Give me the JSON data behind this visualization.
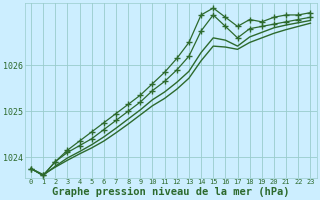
{
  "background_color": "#cceeff",
  "plot_bg_color": "#cceeff",
  "grid_color": "#99cccc",
  "line_color": "#2d6a2d",
  "xlabel": "Graphe pression niveau de la mer (hPa)",
  "xlabel_fontsize": 7.5,
  "ylim": [
    1023.55,
    1027.35
  ],
  "xlim": [
    -0.5,
    23.5
  ],
  "yticks": [
    1024,
    1025,
    1026
  ],
  "xticks": [
    0,
    1,
    2,
    3,
    4,
    5,
    6,
    7,
    8,
    9,
    10,
    11,
    12,
    13,
    14,
    15,
    16,
    17,
    18,
    19,
    20,
    21,
    22,
    23
  ],
  "series": [
    {
      "y": [
        1023.75,
        1023.6,
        1023.9,
        1024.15,
        1024.35,
        1024.55,
        1024.75,
        1024.95,
        1025.15,
        1025.35,
        1025.6,
        1025.85,
        1026.15,
        1026.5,
        1027.1,
        1027.25,
        1027.05,
        1026.85,
        1027.0,
        1026.95,
        1027.05,
        1027.1,
        1027.1,
        1027.15
      ],
      "marker": "+",
      "markersize": 4.5,
      "linewidth": 0.9,
      "zorder": 4
    },
    {
      "y": [
        1023.75,
        1023.6,
        1023.9,
        1024.1,
        1024.25,
        1024.4,
        1024.6,
        1024.8,
        1025.0,
        1025.2,
        1025.45,
        1025.65,
        1025.9,
        1026.2,
        1026.75,
        1027.1,
        1026.85,
        1026.6,
        1026.8,
        1026.85,
        1026.9,
        1026.95,
        1027.0,
        1027.05
      ],
      "marker": "+",
      "markersize": 4.0,
      "linewidth": 0.9,
      "zorder": 3
    },
    {
      "y": [
        1023.75,
        1023.6,
        1023.8,
        1023.98,
        1024.12,
        1024.27,
        1024.44,
        1024.63,
        1024.83,
        1025.03,
        1025.25,
        1025.42,
        1025.63,
        1025.87,
        1026.28,
        1026.6,
        1026.55,
        1026.42,
        1026.62,
        1026.72,
        1026.82,
        1026.88,
        1026.93,
        1026.98
      ],
      "marker": "None",
      "markersize": 0,
      "linewidth": 1.0,
      "zorder": 2
    },
    {
      "y": [
        1023.75,
        1023.62,
        1023.78,
        1023.93,
        1024.07,
        1024.2,
        1024.35,
        1024.53,
        1024.72,
        1024.92,
        1025.12,
        1025.28,
        1025.48,
        1025.72,
        1026.1,
        1026.42,
        1026.4,
        1026.35,
        1026.5,
        1026.6,
        1026.7,
        1026.78,
        1026.85,
        1026.92
      ],
      "marker": "None",
      "markersize": 0,
      "linewidth": 1.0,
      "zorder": 1
    }
  ]
}
